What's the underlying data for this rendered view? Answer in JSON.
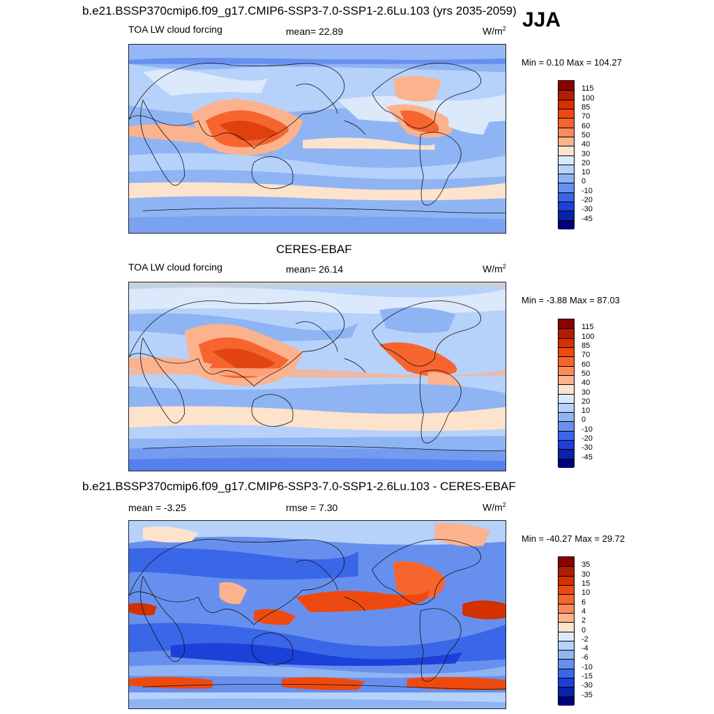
{
  "season": "JJA",
  "panels": [
    {
      "title": "b.e21.BSSP370cmip6.f09_g17.CMIP6-SSP3-7.0-SSP1-2.6Lu.103 (yrs 2035-2059)",
      "left_label": "TOA LW cloud forcing",
      "center_label": "mean=  22.89",
      "units_base": "W/m",
      "units_exp": "2",
      "minmax": "Min =   0.10 Max = 104.27",
      "levels": [
        "115",
        "100",
        "85",
        "70",
        "60",
        "50",
        "40",
        "30",
        "20",
        "10",
        "0",
        "-10",
        "-20",
        "-30",
        "-45"
      ]
    },
    {
      "title": "CERES-EBAF",
      "left_label": "TOA LW cloud forcing",
      "center_label": "mean=  26.14",
      "units_base": "W/m",
      "units_exp": "2",
      "minmax": "Min =  -3.88 Max =  87.03",
      "levels": [
        "115",
        "100",
        "85",
        "70",
        "60",
        "50",
        "40",
        "30",
        "20",
        "10",
        "0",
        "-10",
        "-20",
        "-30",
        "-45"
      ]
    },
    {
      "title": "b.e21.BSSP370cmip6.f09_g17.CMIP6-SSP3-7.0-SSP1-2.6Lu.103 - CERES-EBAF",
      "left_label": "mean =  -3.25",
      "center_label": "rmse =   7.30",
      "units_base": "W/m",
      "units_exp": "2",
      "minmax": "Min = -40.27 Max =  29.72",
      "levels": [
        "35",
        "30",
        "15",
        "10",
        "6",
        "4",
        "2",
        "0",
        "-2",
        "-4",
        "-6",
        "-10",
        "-15",
        "-30",
        "-35"
      ]
    }
  ],
  "colors": {
    "scale16": [
      "#8b0000",
      "#b31c00",
      "#d43000",
      "#ee4a10",
      "#f7652e",
      "#fb8a5a",
      "#fcb28d",
      "#fde2cc",
      "#dbe9fb",
      "#b6d2fa",
      "#8fb4f4",
      "#6790ee",
      "#3a66e8",
      "#1c40d8",
      "#0a22a8",
      "#00007d"
    ]
  }
}
